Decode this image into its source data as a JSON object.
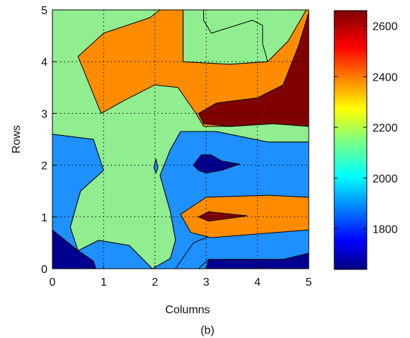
{
  "chart_data": {
    "type": "heatmap",
    "subtype": "filled-contour",
    "title": "",
    "caption": "(b)",
    "xlabel": "Columns",
    "ylabel": "Rows",
    "xlim": [
      0,
      5
    ],
    "ylim": [
      0,
      5
    ],
    "xticks": [
      "0",
      "1",
      "2",
      "3",
      "4",
      "5"
    ],
    "yticks": [
      "0",
      "1",
      "2",
      "3",
      "4",
      "5"
    ],
    "grid": true,
    "colormap": "jet",
    "colorbar": {
      "position": "right",
      "range": [
        1640,
        2660
      ],
      "ticks": [
        1800,
        2000,
        2200,
        2400,
        2600
      ]
    },
    "levels": [
      {
        "value": 1700,
        "color": "#00008f"
      },
      {
        "value": 1950,
        "color": "#1e90ff"
      },
      {
        "value": 2200,
        "color": "#90ee90"
      },
      {
        "value": 2450,
        "color": "#ff8c00"
      },
      {
        "value": 2650,
        "color": "#800000"
      }
    ],
    "regions": [
      {
        "level": 1,
        "points": [
          [
            0,
            0
          ],
          [
            5,
            0
          ],
          [
            5,
            2.45
          ],
          [
            4.2,
            2.45
          ],
          [
            3.2,
            2.65
          ],
          [
            2.5,
            2.65
          ],
          [
            2.3,
            2.3
          ],
          [
            2.1,
            1.8
          ],
          [
            2.3,
            1.1
          ],
          [
            2.4,
            0.55
          ],
          [
            2.3,
            0.2
          ],
          [
            1.95,
            0
          ],
          [
            1.5,
            0.45
          ],
          [
            0.9,
            0.55
          ],
          [
            0.5,
            0.35
          ],
          [
            0.35,
            0.8
          ],
          [
            0.55,
            1.5
          ],
          [
            1.0,
            1.9
          ],
          [
            0.8,
            2.5
          ],
          [
            0,
            2.6
          ]
        ]
      },
      {
        "level": 2,
        "points": [
          [
            0,
            2.6
          ],
          [
            0.8,
            2.5
          ],
          [
            1.0,
            1.9
          ],
          [
            0.55,
            1.5
          ],
          [
            0.35,
            0.8
          ],
          [
            0.5,
            0.35
          ],
          [
            0.9,
            0.55
          ],
          [
            1.5,
            0.45
          ],
          [
            1.95,
            0
          ],
          [
            2.3,
            0.2
          ],
          [
            2.4,
            0.55
          ],
          [
            2.3,
            1.1
          ],
          [
            2.1,
            1.8
          ],
          [
            2.3,
            2.3
          ],
          [
            2.5,
            2.65
          ],
          [
            3.2,
            2.65
          ],
          [
            4.2,
            2.45
          ],
          [
            5,
            2.45
          ],
          [
            5,
            5
          ],
          [
            0,
            5
          ]
        ]
      },
      {
        "level": 0,
        "points": [
          [
            0,
            0
          ],
          [
            0,
            0.75
          ],
          [
            0.5,
            0.35
          ],
          [
            0.8,
            0.15
          ],
          [
            0.85,
            0
          ]
        ]
      },
      {
        "level": 0,
        "points": [
          [
            3.0,
            0
          ],
          [
            3.05,
            0.18
          ],
          [
            4.5,
            0.18
          ],
          [
            5,
            0.35
          ],
          [
            5,
            0
          ]
        ]
      },
      {
        "level": 1,
        "points": [
          [
            2.4,
            0
          ],
          [
            2.75,
            0.5
          ],
          [
            3.05,
            0.62
          ],
          [
            5,
            0.8
          ],
          [
            5,
            0.3
          ],
          [
            4.5,
            0.18
          ],
          [
            3.05,
            0.18
          ],
          [
            2.85,
            0
          ]
        ]
      },
      {
        "level": 3,
        "points": [
          [
            2.5,
            1.05
          ],
          [
            3.0,
            1.38
          ],
          [
            4.2,
            1.42
          ],
          [
            5,
            1.38
          ],
          [
            5,
            0.75
          ],
          [
            3.1,
            0.6
          ],
          [
            2.7,
            0.7
          ]
        ]
      },
      {
        "level": 4,
        "points": [
          [
            2.85,
            1.0
          ],
          [
            3.05,
            1.1
          ],
          [
            3.8,
            1.02
          ],
          [
            3.05,
            0.92
          ]
        ]
      },
      {
        "level": 3,
        "points": [
          [
            0.5,
            4.1
          ],
          [
            0.95,
            3.0
          ],
          [
            1.4,
            3.25
          ],
          [
            2.0,
            3.55
          ],
          [
            2.45,
            3.5
          ],
          [
            2.8,
            3.0
          ],
          [
            2.95,
            2.75
          ],
          [
            3.5,
            2.75
          ],
          [
            4.3,
            2.85
          ],
          [
            5,
            2.75
          ],
          [
            5,
            5
          ],
          [
            4.95,
            5.0
          ],
          [
            4.6,
            4.4
          ],
          [
            4.2,
            4.0
          ],
          [
            3.45,
            3.95
          ],
          [
            2.55,
            4.0
          ],
          [
            2.55,
            5
          ],
          [
            2.1,
            5
          ],
          [
            1.9,
            4.85
          ],
          [
            1.0,
            4.55
          ]
        ]
      },
      {
        "level": 2,
        "points": [
          [
            2.55,
            5
          ],
          [
            2.55,
            4.0
          ],
          [
            3.45,
            3.95
          ],
          [
            4.2,
            4.0
          ],
          [
            4.1,
            4.35
          ],
          [
            4.1,
            4.7
          ],
          [
            3.9,
            4.8
          ],
          [
            3.1,
            4.55
          ],
          [
            2.95,
            4.8
          ],
          [
            2.95,
            5
          ]
        ]
      },
      {
        "level": 4,
        "points": [
          [
            2.85,
            3.0
          ],
          [
            3.2,
            3.2
          ],
          [
            4.0,
            3.3
          ],
          [
            4.5,
            3.55
          ],
          [
            4.8,
            4.3
          ],
          [
            5,
            4.95
          ],
          [
            5,
            2.75
          ],
          [
            4.3,
            2.8
          ],
          [
            3.5,
            2.75
          ],
          [
            2.95,
            2.8
          ]
        ]
      },
      {
        "level": 0,
        "points": [
          [
            2.75,
            2.0
          ],
          [
            2.9,
            2.2
          ],
          [
            3.1,
            2.2
          ],
          [
            3.3,
            2.08
          ],
          [
            3.65,
            2.02
          ],
          [
            3.3,
            1.9
          ],
          [
            3.0,
            1.85
          ],
          [
            2.85,
            1.9
          ]
        ]
      },
      {
        "level": 1,
        "points": [
          [
            1.98,
            1.95
          ],
          [
            2.02,
            2.12
          ],
          [
            2.06,
            1.95
          ],
          [
            2.02,
            1.85
          ]
        ]
      }
    ]
  }
}
